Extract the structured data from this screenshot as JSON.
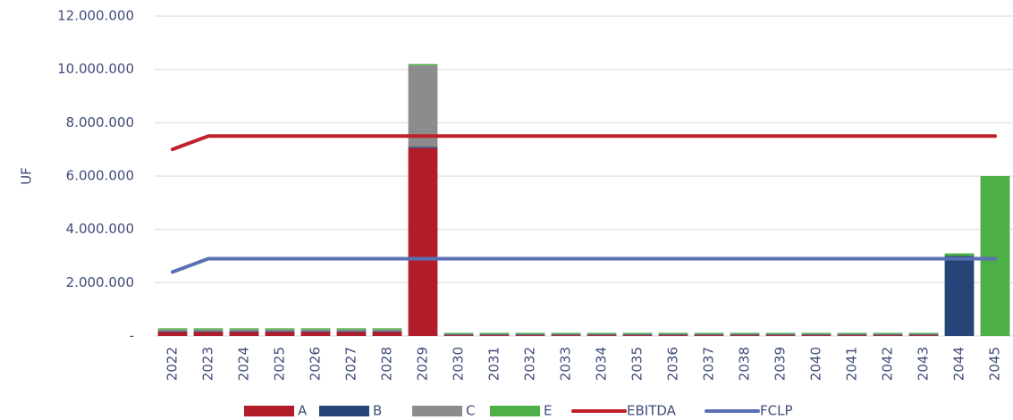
{
  "chart_data": {
    "type": "bar",
    "y_label": "UF",
    "categories": [
      "2022",
      "2023",
      "2024",
      "2025",
      "2026",
      "2027",
      "2028",
      "2029",
      "2030",
      "2031",
      "2032",
      "2033",
      "2034",
      "2035",
      "2036",
      "2037",
      "2038",
      "2039",
      "2040",
      "2041",
      "2042",
      "2043",
      "2044",
      "2045"
    ],
    "series": [
      {
        "name": "A",
        "color": "#b01c2a",
        "values": [
          150000,
          150000,
          150000,
          150000,
          150000,
          150000,
          150000,
          7050000,
          30000,
          30000,
          30000,
          30000,
          30000,
          30000,
          30000,
          30000,
          30000,
          30000,
          30000,
          30000,
          30000,
          30000,
          0,
          0
        ]
      },
      {
        "name": "B",
        "color": "#264478",
        "values": [
          30000,
          30000,
          30000,
          30000,
          30000,
          30000,
          30000,
          50000,
          20000,
          20000,
          20000,
          20000,
          20000,
          20000,
          20000,
          20000,
          20000,
          20000,
          20000,
          20000,
          20000,
          20000,
          3000000,
          0
        ]
      },
      {
        "name": "C",
        "color": "#8c8c8c",
        "values": [
          60000,
          60000,
          60000,
          60000,
          60000,
          60000,
          60000,
          3050000,
          30000,
          30000,
          30000,
          30000,
          30000,
          30000,
          30000,
          30000,
          30000,
          30000,
          30000,
          30000,
          30000,
          30000,
          0,
          0
        ]
      },
      {
        "name": "E",
        "color": "#4caf48",
        "values": [
          50000,
          50000,
          50000,
          50000,
          50000,
          50000,
          50000,
          50000,
          40000,
          40000,
          40000,
          40000,
          40000,
          40000,
          40000,
          40000,
          40000,
          40000,
          40000,
          40000,
          40000,
          40000,
          100000,
          6000000
        ]
      }
    ],
    "lines": [
      {
        "name": "EBITDA",
        "color": "#c0202a",
        "values": [
          7000000,
          7500000,
          7500000,
          7500000,
          7500000,
          7500000,
          7500000,
          7500000,
          7500000,
          7500000,
          7500000,
          7500000,
          7500000,
          7500000,
          7500000,
          7500000,
          7500000,
          7500000,
          7500000,
          7500000,
          7500000,
          7500000,
          7500000,
          7500000
        ]
      },
      {
        "name": "FCLP",
        "color": "#5b6fb5",
        "values": [
          2400000,
          2900000,
          2900000,
          2900000,
          2900000,
          2900000,
          2900000,
          2900000,
          2900000,
          2900000,
          2900000,
          2900000,
          2900000,
          2900000,
          2900000,
          2900000,
          2900000,
          2900000,
          2900000,
          2900000,
          2900000,
          2900000,
          2900000,
          2900000
        ]
      }
    ],
    "ylim": [
      0,
      12000000
    ],
    "yticks": [
      {
        "value": 0,
        "label": "-"
      },
      {
        "value": 2000000,
        "label": "2.000.000"
      },
      {
        "value": 4000000,
        "label": "4.000.000"
      },
      {
        "value": 6000000,
        "label": "6.000.000"
      },
      {
        "value": 8000000,
        "label": "8.000.000"
      },
      {
        "value": 10000000,
        "label": "10.000.000"
      },
      {
        "value": 12000000,
        "label": "12.000.000"
      }
    ],
    "grid": true
  }
}
